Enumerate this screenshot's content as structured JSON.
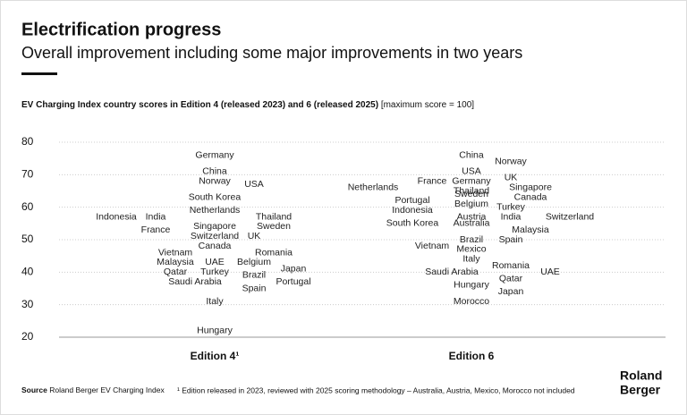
{
  "header": {
    "title": "Electrification progress",
    "subtitle": "Overall improvement including some major improvements in two years"
  },
  "chart_data": {
    "type": "label_strip",
    "subtitle": "EV Charging Index country scores in Edition 4 (released 2023) and 6 (released 2025)",
    "subtitle_note": "[maximum score = 100]",
    "ylim": [
      20,
      80
    ],
    "yticks": [
      20,
      30,
      40,
      50,
      60,
      70,
      80
    ],
    "grid": true,
    "series": [
      {
        "name": "Edition 4¹",
        "countries": [
          "Germany",
          "China",
          "Norway",
          "USA",
          "South Korea",
          "Netherlands",
          "Thailand",
          "India",
          "Indonesia",
          "Singapore",
          "Sweden",
          "France",
          "Switzerland",
          "UK",
          "Canada",
          "Romania",
          "Vietnam",
          "UAE",
          "Belgium",
          "Malaysia",
          "Japan",
          "Turkey",
          "Brazil",
          "Qatar",
          "Saudi Arabia",
          "Portugal",
          "Spain",
          "Italy",
          "Hungary"
        ],
        "values": [
          76,
          71,
          68,
          67,
          63,
          59,
          57,
          57,
          57,
          54,
          54,
          53,
          51,
          51,
          48,
          46,
          46,
          43,
          43,
          43,
          41,
          40,
          39,
          40,
          37,
          37,
          35,
          31,
          22
        ]
      },
      {
        "name": "Edition 6",
        "countries": [
          "China",
          "Norway",
          "USA",
          "UK",
          "Germany",
          "France",
          "Singapore",
          "Netherlands",
          "Thailand",
          "Sweden",
          "Canada",
          "Portugal",
          "Belgium",
          "Turkey",
          "Indonesia",
          "Austria",
          "India",
          "Switzerland",
          "South Korea",
          "Australia",
          "Malaysia",
          "Brazil",
          "Spain",
          "Vietnam",
          "Mexico",
          "Italy",
          "Romania",
          "Saudi Arabia",
          "UAE",
          "Qatar",
          "Hungary",
          "Japan",
          "Morocco"
        ],
        "values": [
          76,
          74,
          71,
          69,
          68,
          68,
          66,
          66,
          65,
          64,
          63,
          62,
          61,
          60,
          59,
          57,
          57,
          57,
          55,
          55,
          53,
          50,
          50,
          48,
          47,
          44,
          42,
          40,
          40,
          38,
          36,
          34,
          31
        ]
      }
    ]
  },
  "footer": {
    "source_label": "Source",
    "source": "Roland Berger EV Charging Index",
    "footnote": "¹ Edition released in 2023, reviewed with 2025 scoring methodology – Australia, Austria, Mexico, Morocco not included",
    "logo": [
      "Roland",
      "Berger"
    ]
  }
}
